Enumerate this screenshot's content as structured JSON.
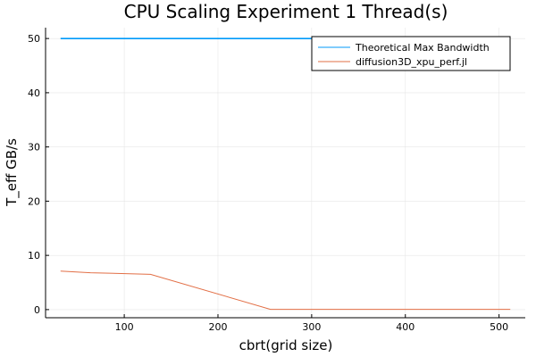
{
  "chart_data": {
    "type": "line",
    "title": "CPU Scaling Experiment 1 Thread(s)",
    "xlabel": "cbrt(grid size)",
    "ylabel": "T_eff GB/s",
    "xlim": [
      16,
      528
    ],
    "ylim": [
      -1.5,
      52
    ],
    "x_ticks": [
      100,
      200,
      300,
      400,
      500
    ],
    "y_ticks": [
      0,
      10,
      20,
      30,
      40,
      50
    ],
    "grid": true,
    "legend_position": "top-right",
    "series": [
      {
        "name": "Theoretical Max Bandwidth",
        "color": "#009AFA",
        "x": [
          32,
          512
        ],
        "y": [
          50,
          50
        ]
      },
      {
        "name": "diffusion3D_xpu_perf.jl",
        "color": "#E26F46",
        "x": [
          32,
          64,
          128,
          256,
          512
        ],
        "y": [
          7.1,
          6.8,
          6.5,
          0.05,
          0.05
        ]
      }
    ]
  }
}
